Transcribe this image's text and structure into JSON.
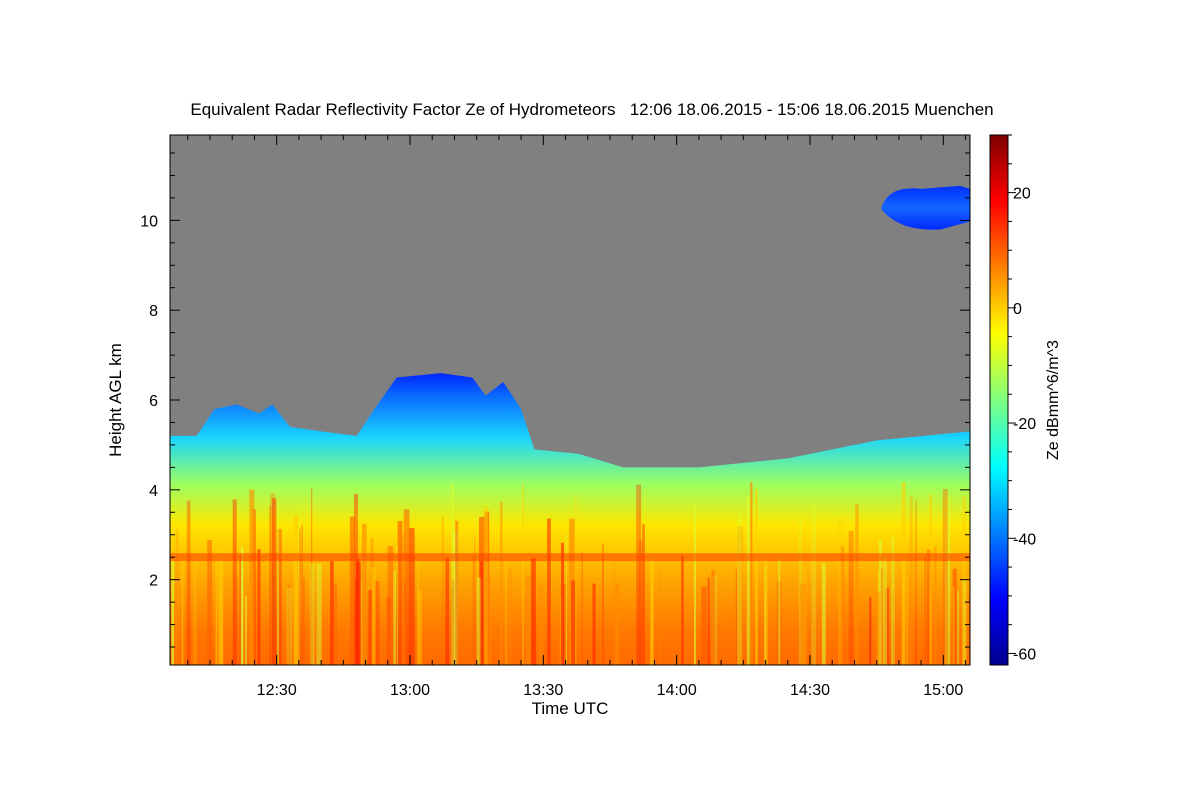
{
  "chart_data": {
    "type": "heatmap",
    "title": "Equivalent Radar Reflectivity Factor Ze of Hydrometeors   12:06 18.06.2015 - 15:06 18.06.2015 Muenchen",
    "xlabel": "Time UTC",
    "ylabel": "Height AGL km",
    "colorbar_label": "Ze dBmm^6/m^3",
    "x_range": [
      "12:06",
      "15:06"
    ],
    "x_ticks": [
      "12:30",
      "13:00",
      "13:30",
      "14:00",
      "14:30",
      "15:00"
    ],
    "ylim": [
      0.1,
      11.9
    ],
    "y_ticks": [
      "2",
      "4",
      "6",
      "8",
      "10"
    ],
    "colorbar_range": [
      -62,
      30
    ],
    "colorbar_ticks": [
      "20",
      "0",
      "-20",
      "-40",
      "-60"
    ],
    "colormap": "jet",
    "background_color": "#808080",
    "echo_top_km": [
      {
        "t": "12:06",
        "h": 5.2
      },
      {
        "t": "12:12",
        "h": 5.2
      },
      {
        "t": "12:16",
        "h": 5.8
      },
      {
        "t": "12:21",
        "h": 5.9
      },
      {
        "t": "12:26",
        "h": 5.7
      },
      {
        "t": "12:29",
        "h": 5.9
      },
      {
        "t": "12:33",
        "h": 5.4
      },
      {
        "t": "12:40",
        "h": 5.3
      },
      {
        "t": "12:48",
        "h": 5.2
      },
      {
        "t": "12:52",
        "h": 5.8
      },
      {
        "t": "12:57",
        "h": 6.5
      },
      {
        "t": "13:07",
        "h": 6.6
      },
      {
        "t": "13:14",
        "h": 6.5
      },
      {
        "t": "13:17",
        "h": 6.1
      },
      {
        "t": "13:21",
        "h": 6.4
      },
      {
        "t": "13:25",
        "h": 5.8
      },
      {
        "t": "13:28",
        "h": 4.9
      },
      {
        "t": "13:38",
        "h": 4.8
      },
      {
        "t": "13:48",
        "h": 4.5
      },
      {
        "t": "13:57",
        "h": 4.5
      },
      {
        "t": "14:05",
        "h": 4.5
      },
      {
        "t": "14:25",
        "h": 4.7
      },
      {
        "t": "14:45",
        "h": 5.1
      },
      {
        "t": "15:06",
        "h": 5.3
      }
    ],
    "upper_cloud_layer": {
      "t_start": "14:46",
      "t_end": "15:06",
      "h_bottom": 9.8,
      "h_top": 10.7,
      "ze_approx": -45
    },
    "melting_layer_km": 2.5
  }
}
